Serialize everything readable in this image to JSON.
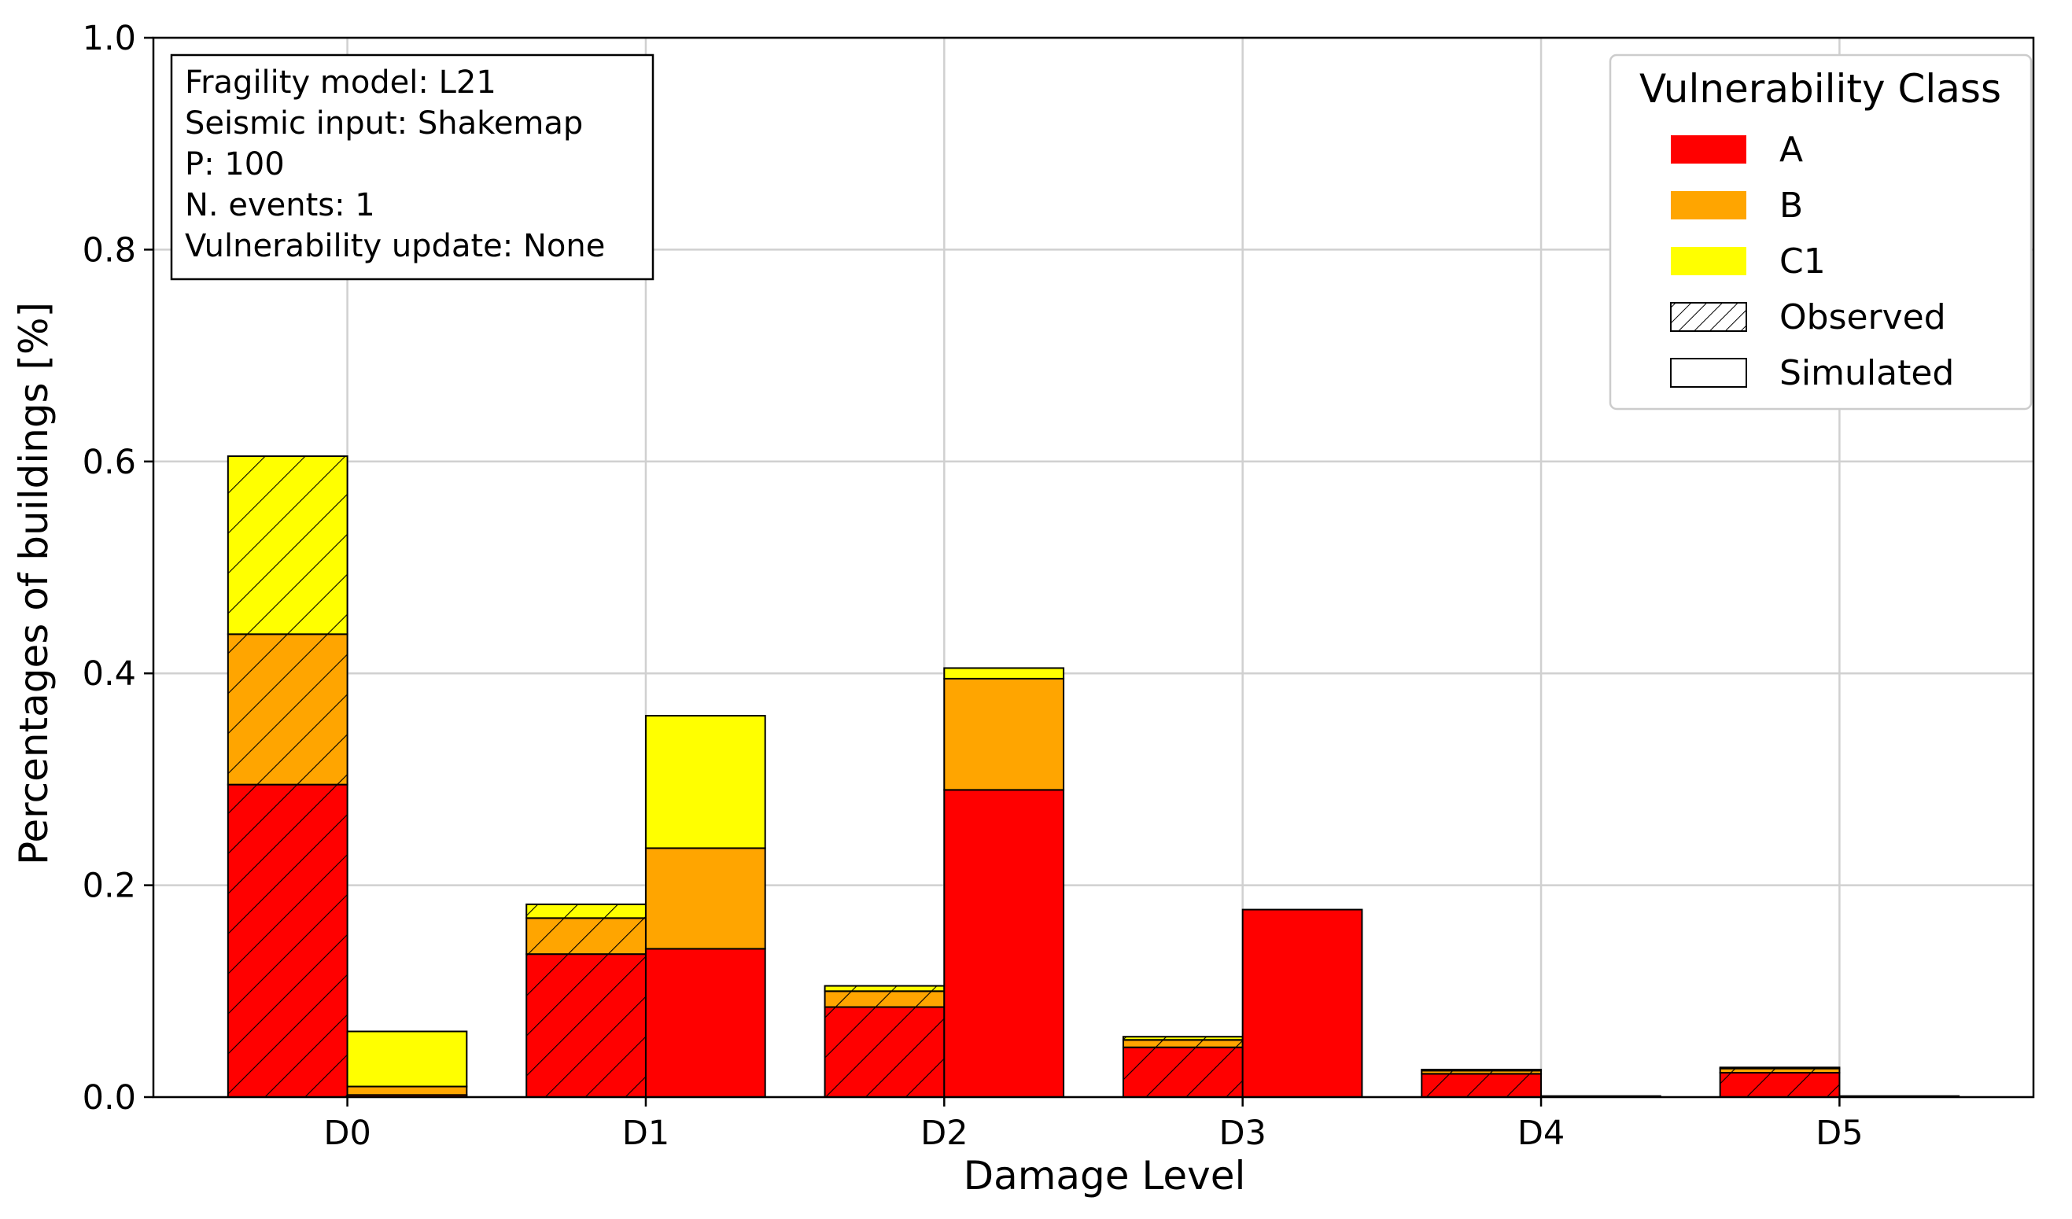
{
  "colors": {
    "A": "#ff0000",
    "B": "#ffa500",
    "C1": "#ffff00"
  },
  "info_box": {
    "lines": [
      "Fragility model: L21",
      "Seismic input: Shakemap",
      "P: 100",
      "N. events: 1",
      "Vulnerability update: None"
    ]
  },
  "legend": {
    "title": "Vulnerability Class",
    "items": [
      {
        "label": "A",
        "kind": "color",
        "color": "#ff0000"
      },
      {
        "label": "B",
        "kind": "color",
        "color": "#ffa500"
      },
      {
        "label": "C1",
        "kind": "color",
        "color": "#ffff00"
      },
      {
        "label": "Observed",
        "kind": "hatch"
      },
      {
        "label": "Simulated",
        "kind": "plain"
      }
    ]
  },
  "chart_data": {
    "type": "bar",
    "stacked": true,
    "grouped": true,
    "title": "",
    "xlabel": "Damage Level",
    "ylabel": "Percentages of buildings [%]",
    "categories": [
      "D0",
      "D1",
      "D2",
      "D3",
      "D4",
      "D5"
    ],
    "ylim": [
      0,
      1.0
    ],
    "yticks": [
      "0.0",
      "0.2",
      "0.4",
      "0.6",
      "0.8",
      "1.0"
    ],
    "grid": true,
    "legend_position": "top-right",
    "groups": [
      {
        "name": "Observed",
        "hatched": true,
        "series": [
          {
            "name": "A",
            "values": [
              0.295,
              0.135,
              0.085,
              0.047,
              0.022,
              0.023
            ]
          },
          {
            "name": "B",
            "values": [
              0.142,
              0.034,
              0.015,
              0.007,
              0.003,
              0.004
            ]
          },
          {
            "name": "C1",
            "values": [
              0.168,
              0.013,
              0.005,
              0.003,
              0.001,
              0.001
            ]
          }
        ]
      },
      {
        "name": "Simulated",
        "hatched": false,
        "series": [
          {
            "name": "A",
            "values": [
              0.002,
              0.14,
              0.29,
              0.177,
              0.001,
              0.001
            ]
          },
          {
            "name": "B",
            "values": [
              0.008,
              0.095,
              0.105,
              0.0,
              0.0,
              0.0
            ]
          },
          {
            "name": "C1",
            "values": [
              0.052,
              0.125,
              0.01,
              0.0,
              0.0,
              0.0
            ]
          }
        ]
      }
    ]
  }
}
